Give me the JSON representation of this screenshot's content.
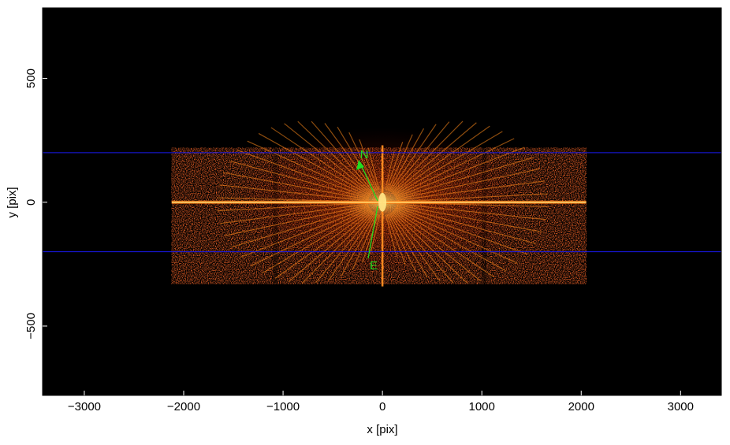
{
  "chart_data": {
    "type": "image",
    "xlabel": "x [pix]",
    "ylabel": "y [pix]",
    "xlim": [
      -3420,
      3410
    ],
    "ylim": [
      -780,
      785
    ],
    "xticks": [
      {
        "value": -3000,
        "label": "−3000"
      },
      {
        "value": -2000,
        "label": "−2000"
      },
      {
        "value": -1000,
        "label": "−1000"
      },
      0,
      1000,
      2000,
      3000
    ],
    "yticks": [
      {
        "value": -500,
        "label": "−500"
      },
      0,
      500
    ],
    "hlines": [
      200,
      -200
    ],
    "hline_color": "#1a1aee",
    "annotations": [
      "N",
      "E"
    ],
    "annotation_color": "#22dd22"
  }
}
